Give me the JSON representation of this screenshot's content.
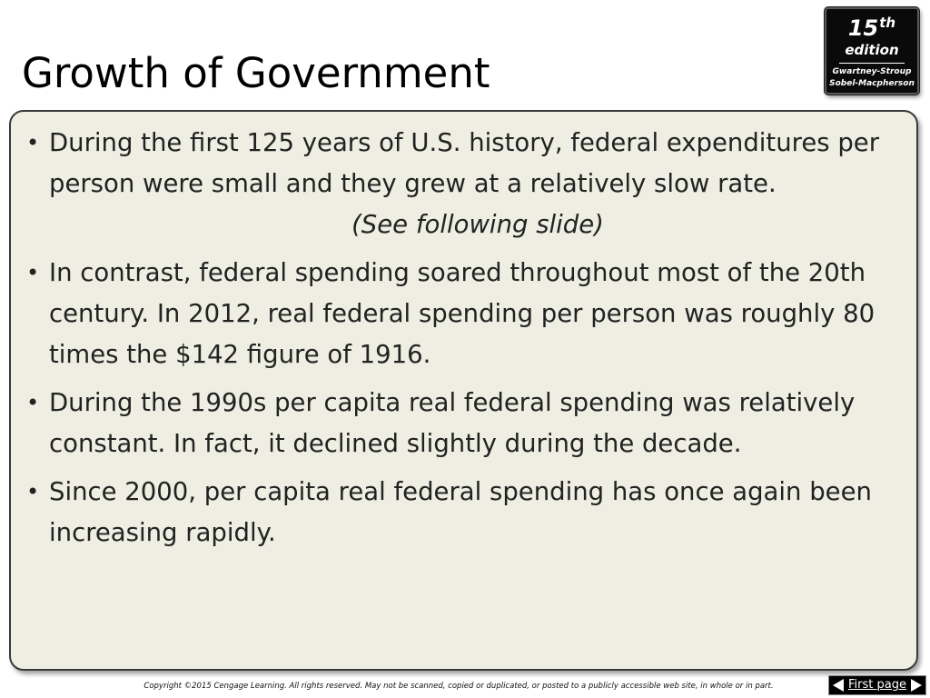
{
  "slide": {
    "title": "Growth of Government"
  },
  "badge": {
    "edition_number": "15",
    "edition_suffix": "th",
    "edition_word": "edition",
    "author_line_1": "Gwartney-Stroup",
    "author_line_2": "Sobel-Macpherson"
  },
  "bullets": [
    {
      "text": "During the first 125 years of U.S. history, federal expenditures per person were small and they grew at a relatively slow rate.",
      "note": "(See following slide)"
    },
    {
      "text": "In contrast, federal spending soared throughout most of the 20th century.  In 2012, real federal spending per person was roughly 80 times the $142 figure of 1916."
    },
    {
      "text": "During the 1990s per capita real federal spending was relatively constant. In fact, it declined slightly during the decade."
    },
    {
      "text": "Since 2000, per capita real federal spending has once again been increasing rapidly."
    }
  ],
  "bullet_glyph": "•",
  "footer": {
    "copyright": "Copyright ©2015 Cengage Learning. All rights reserved. May not be scanned, copied or duplicated, or posted to a publicly accessible web site, in whole or in part.",
    "first_page_label": "First page"
  },
  "colors": {
    "content_background": "#eeeee2",
    "badge_background": "#0a0a0a",
    "text": "#222222"
  }
}
